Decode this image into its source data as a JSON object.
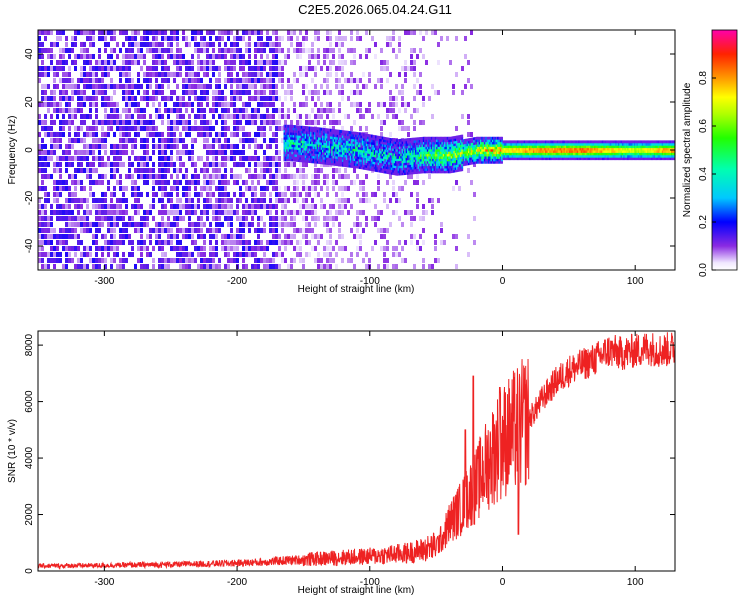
{
  "title": "C2E5.2026.065.04.24.G11",
  "chart_data": [
    {
      "type": "heatmap",
      "xlabel": "Height of straight line (km)",
      "ylabel": "Frequency (Hz)",
      "xlim": [
        -350,
        130
      ],
      "ylim": [
        -50,
        50
      ],
      "xticks": [
        -300,
        -200,
        -100,
        0,
        100
      ],
      "yticks": [
        -40,
        -20,
        0,
        20,
        40
      ],
      "tick_labels_x": [
        "-300",
        "-200",
        "-100",
        "0",
        "100"
      ],
      "tick_labels_y": [
        "-40",
        "-20",
        "0",
        "20",
        "40"
      ],
      "colorbar": {
        "label": "Normalized spectral amplitude",
        "range": [
          0,
          1
        ],
        "ticks": [
          0.0,
          0.2,
          0.4,
          0.6,
          0.8
        ],
        "tick_labels": [
          "0.0",
          "0.2",
          "0.4",
          "0.6",
          "0.8"
        ]
      },
      "signal_band": {
        "center_freq_hz": 0,
        "start_km": -165,
        "points": [
          {
            "x": -160,
            "f": 3,
            "amp": 0.35
          },
          {
            "x": -140,
            "f": 2,
            "amp": 0.3
          },
          {
            "x": -110,
            "f": 0,
            "amp": 0.35
          },
          {
            "x": -80,
            "f": -3,
            "amp": 0.3
          },
          {
            "x": -60,
            "f": -2,
            "amp": 0.45
          },
          {
            "x": -40,
            "f": -2,
            "amp": 0.55
          },
          {
            "x": -20,
            "f": 0,
            "amp": 0.6
          },
          {
            "x": 0,
            "f": 0,
            "amp": 0.8
          },
          {
            "x": 20,
            "f": 0,
            "amp": 0.9
          },
          {
            "x": 60,
            "f": 0,
            "amp": 0.95
          },
          {
            "x": 100,
            "f": 0,
            "amp": 0.75
          },
          {
            "x": 125,
            "f": 0,
            "amp": 0.9
          }
        ]
      }
    },
    {
      "type": "line",
      "xlabel": "Height of straight line (km)",
      "ylabel": "SNR (10 * v/v)",
      "xlim": [
        -350,
        130
      ],
      "ylim": [
        0,
        8500
      ],
      "xticks": [
        -300,
        -200,
        -100,
        0,
        100
      ],
      "yticks": [
        0,
        2000,
        4000,
        6000,
        8000
      ],
      "tick_labels_x": [
        "-300",
        "-200",
        "-100",
        "0",
        "100"
      ],
      "tick_labels_y": [
        "0",
        "2000",
        "4000",
        "6000",
        "8000"
      ],
      "color": "#ee2222",
      "series": [
        {
          "name": "SNR",
          "x": [
            -350,
            -300,
            -250,
            -200,
            -180,
            -160,
            -140,
            -120,
            -100,
            -90,
            -80,
            -70,
            -60,
            -50,
            -45,
            -40,
            -35,
            -30,
            -25,
            -20,
            -15,
            -10,
            -5,
            0,
            5,
            10,
            15,
            20,
            25,
            30,
            35,
            40,
            45,
            50,
            55,
            60,
            70,
            80,
            90,
            100,
            110,
            120,
            130
          ],
          "y": [
            180,
            200,
            230,
            280,
            320,
            380,
            430,
            480,
            520,
            560,
            600,
            650,
            750,
            900,
            1200,
            1700,
            2000,
            2300,
            2700,
            3000,
            3500,
            3900,
            4300,
            4600,
            4800,
            5000,
            5200,
            5400,
            5700,
            6100,
            6400,
            6700,
            6900,
            7100,
            7200,
            7300,
            7500,
            7800,
            7700,
            7800,
            7900,
            7800,
            7900
          ]
        }
      ],
      "spikes": [
        {
          "x": -28,
          "y": 5000
        },
        {
          "x": -22,
          "y": 6900
        },
        {
          "x": -2,
          "y": 6500
        },
        {
          "x": 12,
          "y": 1300
        }
      ]
    }
  ]
}
